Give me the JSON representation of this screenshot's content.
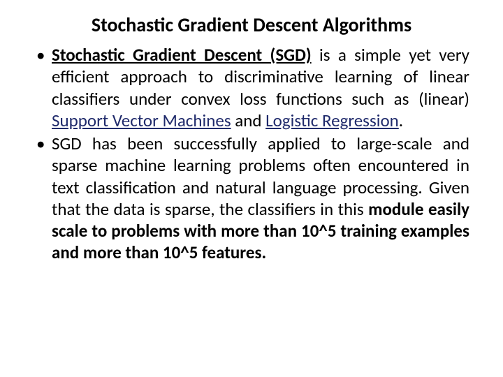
{
  "slide": {
    "title": "Stochastic Gradient Descent Algorithms",
    "title_fontsize": 28,
    "title_color": "#000000",
    "body_fontsize": 25,
    "body_color": "#000000",
    "link_color": "#1f2a6b",
    "bullet_color": "#000000",
    "bullet_glyph": "•",
    "background_color": "#ffffff",
    "bullets": [
      {
        "segments": [
          {
            "text": "Stochastic Gradient Descent (SGD)",
            "style": "bold-underline"
          },
          {
            "text": " is a simple yet very efficient approach to discriminative learning of linear classifiers under convex loss functions such as (linear) ",
            "style": "plain"
          },
          {
            "text": "Support Vector Machines",
            "style": "link"
          },
          {
            "text": " and ",
            "style": "plain"
          },
          {
            "text": "Logistic Regression",
            "style": "link"
          },
          {
            "text": ".",
            "style": "plain"
          }
        ]
      },
      {
        "segments": [
          {
            "text": "SGD has been successfully applied to large-scale and sparse machine learning problems often encountered in text classification and natural language processing. Given that the data is sparse, the classifiers in this ",
            "style": "plain"
          },
          {
            "text": "module easily scale to problems with more than 10^5 training examples and more than 10^5 features.",
            "style": "bold"
          }
        ]
      }
    ]
  }
}
